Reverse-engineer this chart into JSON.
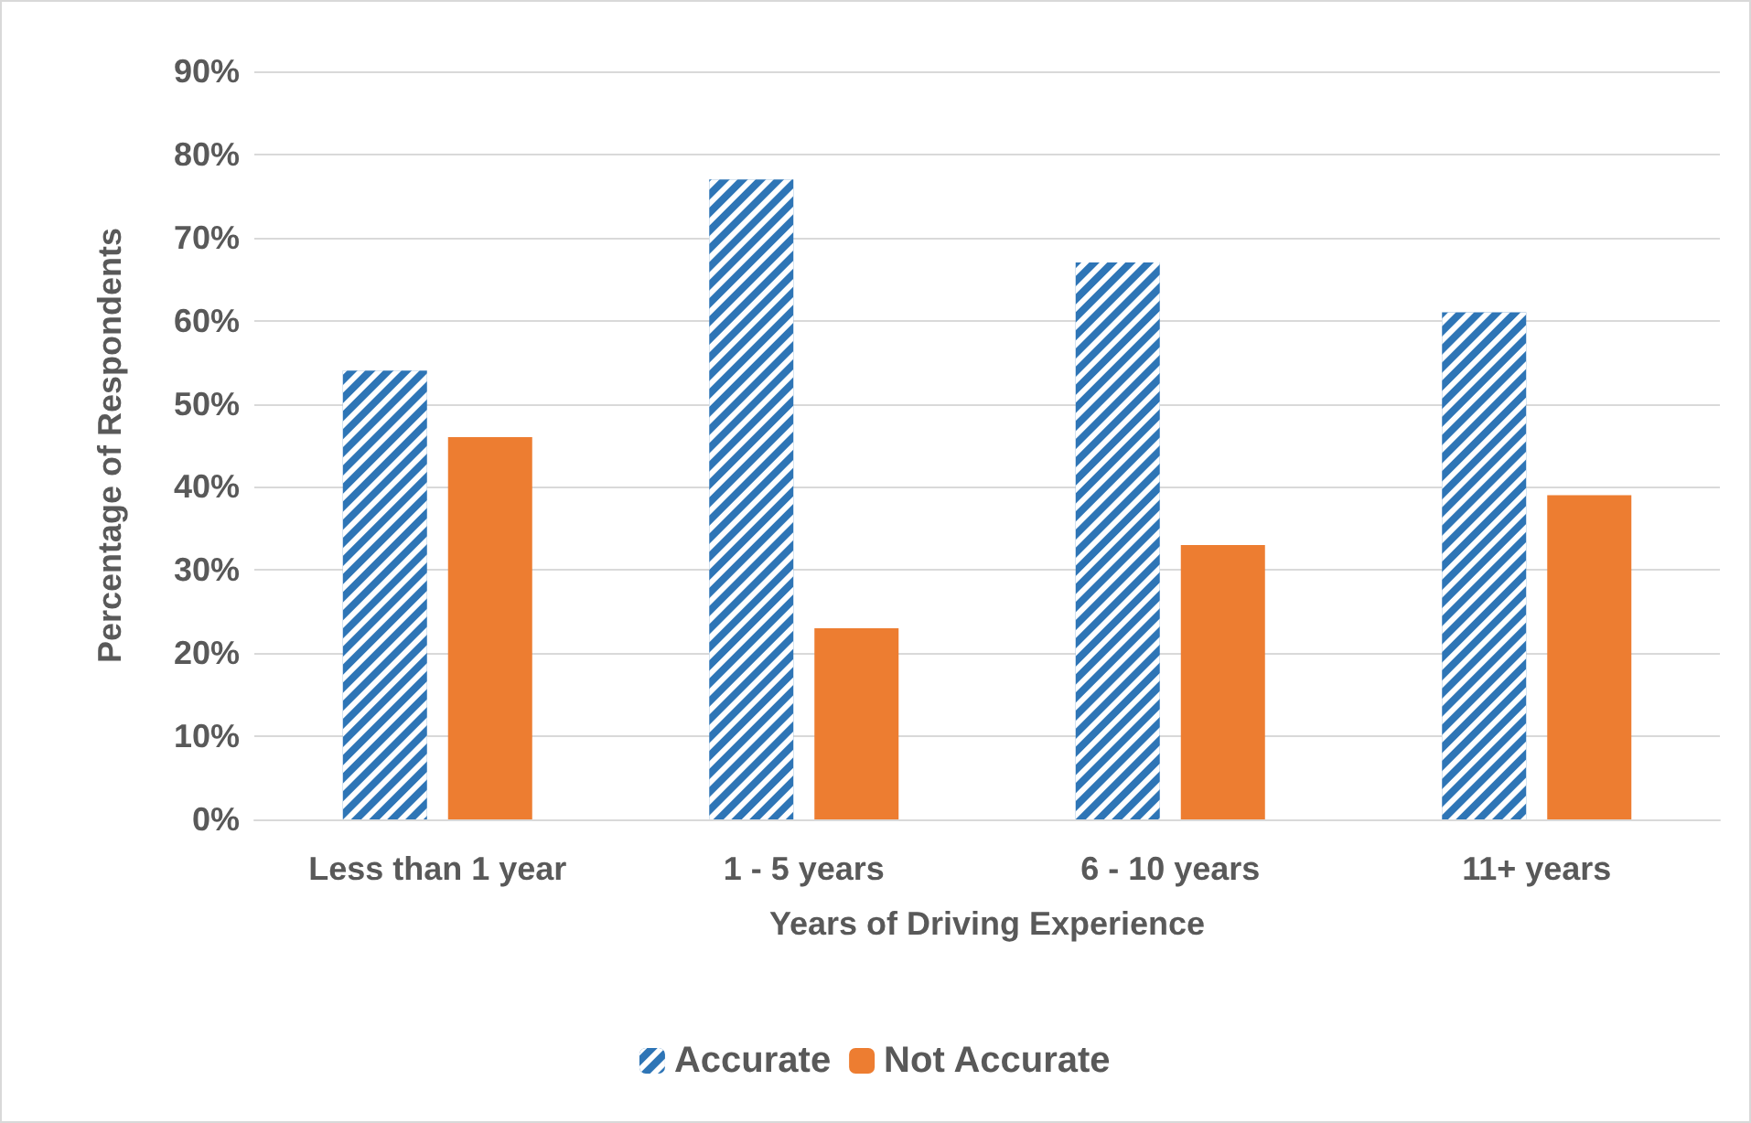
{
  "chart_data": {
    "type": "bar",
    "xlabel": "Years of Driving Experience",
    "ylabel": "Percentage of Respondents",
    "categories": [
      "Less than 1 year",
      "1 - 5 years",
      "6 - 10 years",
      "11+ years"
    ],
    "series": [
      {
        "name": "Accurate",
        "color": "#2e75b6",
        "values": [
          54,
          77,
          67,
          61
        ]
      },
      {
        "name": "Not Accurate",
        "color": "#ed7d31",
        "values": [
          46,
          23,
          33,
          39
        ]
      }
    ],
    "ylim": [
      0,
      90
    ],
    "yticks": [
      {
        "value": 0,
        "label": "0%"
      },
      {
        "value": 10,
        "label": "10%"
      },
      {
        "value": 20,
        "label": "20%"
      },
      {
        "value": 30,
        "label": "30%"
      },
      {
        "value": 40,
        "label": "40%"
      },
      {
        "value": 50,
        "label": "50%"
      },
      {
        "value": 60,
        "label": "60%"
      },
      {
        "value": 70,
        "label": "70%"
      },
      {
        "value": 80,
        "label": "80%"
      },
      {
        "value": 90,
        "label": "90%"
      }
    ],
    "grid": "y",
    "legend": "bottom"
  }
}
